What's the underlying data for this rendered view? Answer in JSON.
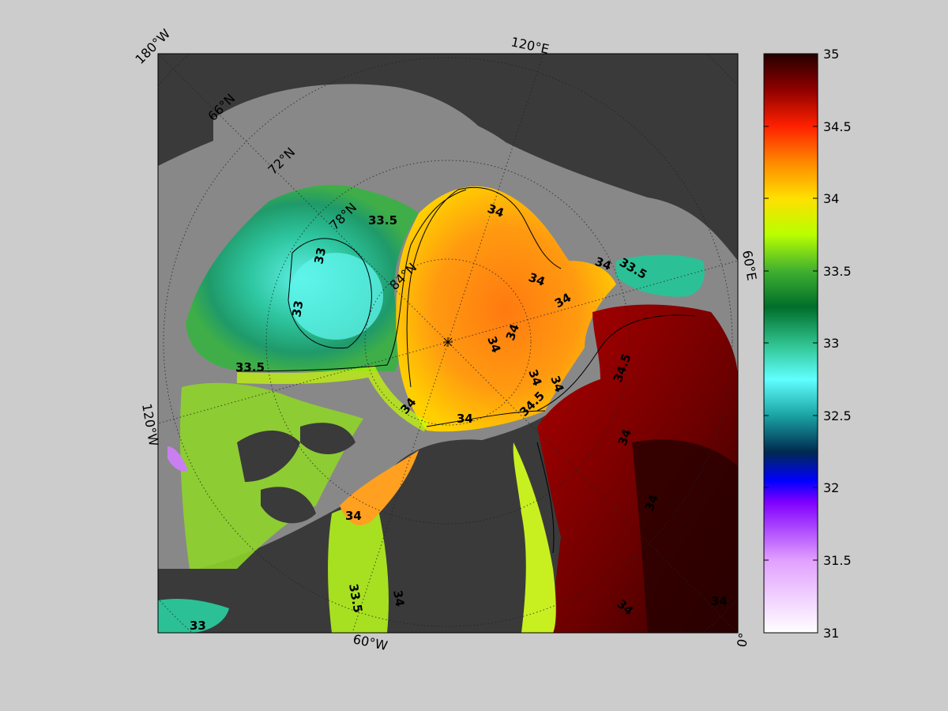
{
  "map": {
    "projection": "polar stereographic (North Pole)",
    "colors": {
      "background": "#cccccc",
      "land": "#3a3a3a",
      "shelf": "#888888",
      "frame": "#000000"
    },
    "longitude_labels": [
      "180°W",
      "120°E",
      "60°E",
      "0°",
      "60°W",
      "120°W"
    ],
    "latitude_labels": [
      "66°N",
      "72°N",
      "78°N",
      "84°N"
    ],
    "contour_labels": [
      "33",
      "33",
      "33",
      "33.5",
      "33.5",
      "33.5",
      "33.5",
      "34",
      "34",
      "34",
      "34",
      "34",
      "34",
      "34",
      "34",
      "34",
      "34",
      "34",
      "34",
      "34.5",
      "34.5",
      "34",
      "34",
      "34",
      "34"
    ]
  },
  "colorbar": {
    "min": 31,
    "max": 35,
    "ticks": [
      "35",
      "34.5",
      "34",
      "33.5",
      "33",
      "32.5",
      "32",
      "31.5",
      "31"
    ],
    "colormap": [
      {
        "v": 31.0,
        "c": "#ffffff"
      },
      {
        "v": 31.5,
        "c": "#e2a0ff"
      },
      {
        "v": 31.9,
        "c": "#8000ff"
      },
      {
        "v": 32.05,
        "c": "#0000ff"
      },
      {
        "v": 32.25,
        "c": "#002a50"
      },
      {
        "v": 32.5,
        "c": "#1aa3a3"
      },
      {
        "v": 32.75,
        "c": "#60ffff"
      },
      {
        "v": 33.0,
        "c": "#2ec08c"
      },
      {
        "v": 33.25,
        "c": "#006e2a"
      },
      {
        "v": 33.5,
        "c": "#40b030"
      },
      {
        "v": 33.75,
        "c": "#b8ff00"
      },
      {
        "v": 34.0,
        "c": "#ffe000"
      },
      {
        "v": 34.25,
        "c": "#ff8800"
      },
      {
        "v": 34.5,
        "c": "#ff2000"
      },
      {
        "v": 34.75,
        "c": "#900000"
      },
      {
        "v": 35.0,
        "c": "#250000"
      }
    ]
  }
}
